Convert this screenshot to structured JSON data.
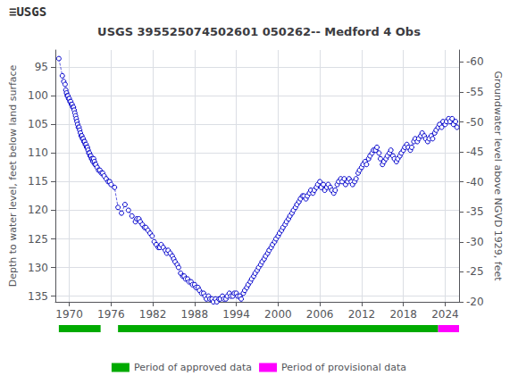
{
  "chart_data": {
    "type": "line",
    "title": "USGS 395525074502601 050262-- Medford 4 Obs",
    "annotations": [
      "≡USGS"
    ],
    "ylabel": "Depth to water level, feet below land surface",
    "y2label": "Groundwater level above NGVD 1929, feet",
    "color": "#0000cc",
    "marker": "circle",
    "line_style": "dashed",
    "xlim": [
      1968,
      2026
    ],
    "xticks": [
      1970,
      1976,
      1982,
      1988,
      1994,
      2000,
      2006,
      2012,
      2018,
      2024
    ],
    "ylim": [
      136,
      92
    ],
    "yticks": [
      95,
      100,
      105,
      110,
      115,
      120,
      125,
      130,
      135
    ],
    "y2lim": [
      -20,
      -62
    ],
    "y2ticks": [
      -20,
      -25,
      -30,
      -35,
      -40,
      -45,
      -50,
      -55,
      -60
    ],
    "grid": true,
    "legend": "bottom",
    "periods": [
      {
        "name": "Period of approved data",
        "color": "#00aa00",
        "ranges": [
          [
            1968.5,
            1974.5
          ],
          [
            1977.0,
            2023.0
          ]
        ]
      },
      {
        "name": "Period of provisional data",
        "color": "#ff00ff",
        "ranges": [
          [
            2023.0,
            2026
          ]
        ]
      }
    ],
    "x": [
      1968.5,
      1969.0,
      1969.2,
      1969.4,
      1969.5,
      1969.6,
      1969.7,
      1969.8,
      1969.9,
      1970.0,
      1970.1,
      1970.2,
      1970.3,
      1970.4,
      1970.5,
      1970.6,
      1970.7,
      1970.8,
      1970.9,
      1971.0,
      1971.1,
      1971.2,
      1971.3,
      1971.4,
      1971.5,
      1971.6,
      1971.7,
      1971.8,
      1971.9,
      1972.0,
      1972.1,
      1972.2,
      1972.3,
      1972.4,
      1972.5,
      1972.6,
      1972.7,
      1972.8,
      1972.9,
      1973.0,
      1973.1,
      1973.2,
      1973.3,
      1973.4,
      1973.5,
      1973.6,
      1973.7,
      1973.8,
      1974.0,
      1974.2,
      1974.4,
      1974.6,
      1974.8,
      1975.0,
      1975.3,
      1975.6,
      1975.8,
      1976.0,
      1976.5,
      1977.0,
      1977.5,
      1978.0,
      1978.5,
      1979.0,
      1979.5,
      1979.7,
      1980.0,
      1980.2,
      1980.5,
      1980.8,
      1981.0,
      1981.3,
      1981.6,
      1981.9,
      1982.2,
      1982.5,
      1982.8,
      1983.0,
      1983.2,
      1983.5,
      1983.8,
      1984.0,
      1984.2,
      1984.5,
      1984.8,
      1985.0,
      1985.2,
      1985.5,
      1985.7,
      1986.0,
      1986.3,
      1986.5,
      1986.7,
      1987.0,
      1987.2,
      1987.5,
      1987.7,
      1988.0,
      1988.2,
      1988.5,
      1988.7,
      1989.0,
      1989.3,
      1989.5,
      1989.7,
      1990.0,
      1990.2,
      1990.5,
      1990.7,
      1991.0,
      1991.2,
      1991.5,
      1991.7,
      1992.0,
      1992.2,
      1992.5,
      1992.7,
      1993.0,
      1993.2,
      1993.5,
      1993.7,
      1994.0,
      1994.2,
      1994.5,
      1994.7,
      1995.0,
      1995.2,
      1995.5,
      1995.7,
      1996.0,
      1996.2,
      1996.5,
      1996.7,
      1997.0,
      1997.2,
      1997.5,
      1997.7,
      1998.0,
      1998.2,
      1998.5,
      1998.7,
      1999.0,
      1999.2,
      1999.5,
      1999.7,
      2000.0,
      2000.2,
      2000.5,
      2000.7,
      2001.0,
      2001.2,
      2001.5,
      2001.7,
      2002.0,
      2002.2,
      2002.5,
      2002.7,
      2003.0,
      2003.2,
      2003.5,
      2003.7,
      2004.0,
      2004.2,
      2004.5,
      2004.7,
      2005.0,
      2005.2,
      2005.5,
      2005.7,
      2006.0,
      2006.2,
      2006.5,
      2006.7,
      2007.0,
      2007.2,
      2007.5,
      2007.7,
      2008.0,
      2008.2,
      2008.5,
      2008.7,
      2009.0,
      2009.2,
      2009.5,
      2009.7,
      2010.0,
      2010.2,
      2010.5,
      2010.7,
      2011.0,
      2011.2,
      2011.5,
      2011.7,
      2012.0,
      2012.2,
      2012.5,
      2012.7,
      2013.0,
      2013.2,
      2013.5,
      2013.7,
      2014.0,
      2014.2,
      2014.5,
      2014.7,
      2015.0,
      2015.2,
      2015.5,
      2015.7,
      2016.0,
      2016.2,
      2016.5,
      2016.7,
      2017.0,
      2017.2,
      2017.5,
      2017.7,
      2018.0,
      2018.2,
      2018.5,
      2018.7,
      2019.0,
      2019.2,
      2019.5,
      2019.7,
      2020.0,
      2020.2,
      2020.5,
      2020.7,
      2021.0,
      2021.2,
      2021.5,
      2021.7,
      2022.0,
      2022.2,
      2022.5,
      2022.7,
      2023.0,
      2023.2,
      2023.5,
      2023.7,
      2024.0,
      2024.2,
      2024.5,
      2024.7,
      2025.0,
      2025.2,
      2025.5,
      2025.7
    ],
    "values": [
      93.5,
      96.5,
      97.5,
      98.0,
      99.0,
      99.5,
      100.0,
      100.0,
      100.5,
      100.5,
      101.0,
      101.0,
      101.5,
      101.5,
      102.0,
      102.0,
      102.5,
      103.0,
      103.5,
      104.0,
      104.5,
      105.0,
      105.5,
      105.5,
      106.0,
      106.5,
      107.0,
      107.0,
      107.5,
      107.5,
      108.0,
      108.0,
      108.5,
      108.5,
      109.0,
      109.0,
      109.5,
      110.0,
      110.0,
      110.5,
      110.5,
      111.0,
      111.0,
      111.5,
      111.0,
      111.5,
      112.0,
      112.0,
      112.5,
      113.0,
      113.0,
      113.5,
      113.5,
      114.0,
      114.5,
      115.0,
      115.0,
      115.5,
      116.0,
      119.5,
      120.5,
      119.0,
      120.0,
      121.0,
      122.0,
      121.5,
      121.5,
      122.0,
      122.5,
      123.0,
      123.0,
      123.5,
      124.0,
      124.5,
      125.5,
      126.0,
      126.5,
      126.5,
      126.0,
      126.5,
      127.0,
      127.5,
      127.0,
      127.5,
      128.0,
      128.5,
      129.0,
      129.5,
      130.0,
      131.0,
      131.5,
      131.5,
      132.0,
      132.0,
      132.5,
      132.5,
      133.0,
      133.0,
      133.5,
      133.5,
      134.0,
      134.5,
      134.5,
      135.0,
      135.5,
      135.0,
      135.5,
      135.5,
      136.0,
      135.5,
      136.0,
      135.5,
      135.5,
      135.0,
      135.5,
      135.5,
      135.0,
      134.5,
      135.0,
      135.0,
      134.5,
      134.5,
      135.0,
      135.0,
      135.5,
      134.5,
      134.0,
      133.5,
      133.0,
      132.5,
      132.0,
      131.5,
      131.0,
      130.5,
      130.0,
      129.5,
      129.0,
      128.5,
      128.0,
      127.5,
      127.0,
      126.5,
      126.0,
      125.5,
      125.0,
      124.5,
      124.0,
      123.5,
      123.0,
      122.5,
      122.0,
      121.5,
      121.0,
      120.5,
      120.0,
      119.5,
      119.0,
      118.5,
      118.0,
      117.5,
      117.5,
      118.0,
      117.5,
      117.0,
      116.5,
      117.0,
      116.5,
      116.0,
      115.5,
      115.0,
      116.0,
      115.5,
      116.5,
      116.0,
      115.5,
      116.0,
      116.5,
      117.0,
      116.5,
      115.5,
      115.0,
      114.5,
      115.0,
      114.5,
      115.5,
      115.0,
      114.5,
      115.0,
      115.5,
      115.0,
      114.5,
      113.5,
      113.0,
      112.5,
      112.0,
      111.5,
      112.0,
      111.0,
      110.5,
      110.0,
      109.5,
      109.5,
      109.0,
      110.0,
      111.0,
      112.0,
      111.5,
      111.0,
      110.5,
      110.0,
      109.5,
      110.5,
      111.0,
      111.5,
      111.0,
      110.5,
      110.0,
      109.5,
      109.0,
      108.5,
      109.0,
      109.5,
      109.0,
      108.0,
      107.5,
      108.0,
      107.5,
      107.0,
      106.5,
      107.0,
      107.5,
      108.0,
      107.5,
      107.0,
      107.5,
      106.5,
      106.0,
      105.5,
      105.0,
      105.5,
      104.5,
      105.0,
      104.5,
      104.0,
      104.5,
      104.0,
      105.0,
      104.5,
      105.5
    ]
  }
}
